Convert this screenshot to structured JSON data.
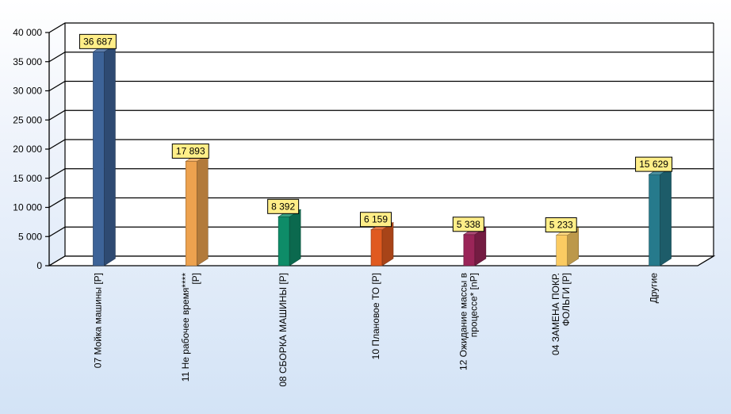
{
  "chart_data": {
    "type": "bar",
    "categories": [
      "07 Мойка машины [P]",
      "11 Не рабочее время**** [P]",
      "08 СБОРКА МАШИНЫ [P]",
      "10 Плановое ТО [P]",
      "12 Ожидание массы в процессе* [nP]",
      "04 ЗАМЕНА ПОКР. ФОЛЬГИ [P]",
      "Другие"
    ],
    "category_lines": [
      [
        "07 Мойка машины [P]"
      ],
      [
        "11 Не рабочее время****",
        "[P]"
      ],
      [
        "08 СБОРКА МАШИНЫ [P]"
      ],
      [
        "10 Плановое ТО [P]"
      ],
      [
        "12 Ожидание массы в",
        "процессе* [nP]"
      ],
      [
        "04 ЗАМЕНА ПОКР.",
        "ФОЛЬГИ [P]"
      ],
      [
        "Другие"
      ]
    ],
    "values": [
      36687,
      17893,
      8392,
      6159,
      5338,
      5233,
      15629
    ],
    "data_labels": [
      "36 687",
      "17 893",
      "8 392",
      "6 159",
      "5 338",
      "5 233",
      "15 629"
    ],
    "ylim": [
      0,
      40000
    ],
    "yticks": [
      {
        "value": 0,
        "label": "0"
      },
      {
        "value": 5000,
        "label": "5 000"
      },
      {
        "value": 10000,
        "label": "10 000"
      },
      {
        "value": 15000,
        "label": "15 000"
      },
      {
        "value": 20000,
        "label": "20 000"
      },
      {
        "value": 25000,
        "label": "25 000"
      },
      {
        "value": 30000,
        "label": "30 000"
      },
      {
        "value": 35000,
        "label": "35 000"
      },
      {
        "value": 40000,
        "label": "40 000"
      }
    ],
    "grid": true,
    "style": "3d",
    "colors": [
      "#3d6398",
      "#eda24f",
      "#0e8c68",
      "#e05a20",
      "#9a2558",
      "#fbcb62",
      "#267a8c"
    ],
    "label_box_color": "#ffee88",
    "title": "",
    "xlabel": "",
    "ylabel": ""
  }
}
